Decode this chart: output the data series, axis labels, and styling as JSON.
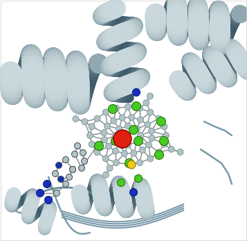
{
  "bg_color": "#ffffff",
  "helix_light": "#c8d8dc",
  "helix_dark": "#3a5868",
  "helix_mid": "#7a9aaa",
  "helix_edge": "#506878",
  "loop_color": "#8aaabb",
  "atom_gray": "#b0c4c8",
  "atom_gray_edge": "#7a9090",
  "atom_red": "#e02010",
  "atom_green": "#44cc22",
  "atom_blue": "#1830b8",
  "atom_yellow": "#e8d010",
  "bond_color": "#808888",
  "figsize": [
    3.57,
    3.47
  ],
  "dpi": 100
}
